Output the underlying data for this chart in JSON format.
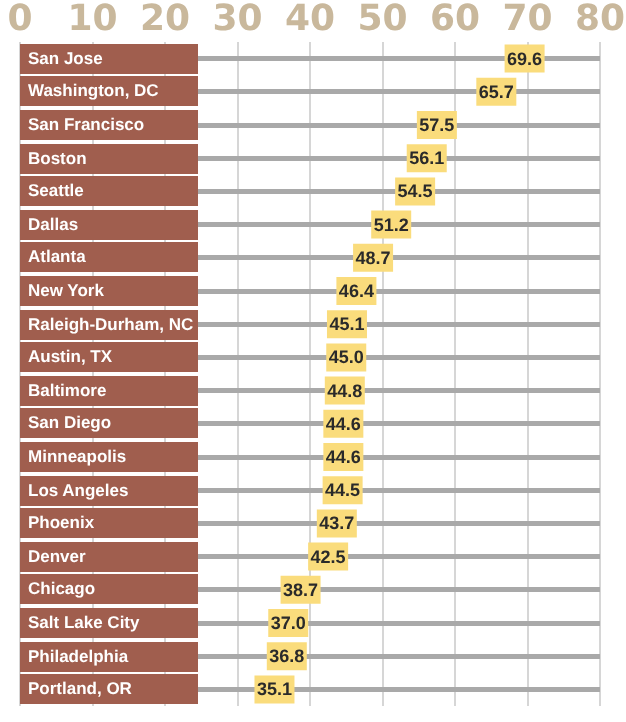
{
  "chart_data": {
    "type": "scatter",
    "orientation": "horizontal",
    "categories": [
      "San Jose",
      "Washington, DC",
      "San Francisco",
      "Boston",
      "Seattle",
      "Dallas",
      "Atlanta",
      "New York",
      "Raleigh-Durham, NC",
      "Austin, TX",
      "Baltimore",
      "San Diego",
      "Minneapolis",
      "Los Angeles",
      "Phoenix",
      "Denver",
      "Chicago",
      "Salt Lake City",
      "Philadelphia",
      "Portland, OR"
    ],
    "values": [
      69.6,
      65.7,
      57.5,
      56.1,
      54.5,
      51.2,
      48.7,
      46.4,
      45.1,
      45.0,
      44.8,
      44.6,
      44.6,
      44.5,
      43.7,
      42.5,
      38.7,
      37.0,
      36.8,
      35.1
    ],
    "value_labels": [
      "69.6",
      "65.7",
      "57.5",
      "56.1",
      "54.5",
      "51.2",
      "48.7",
      "46.4",
      "45.1",
      "45.0",
      "44.8",
      "44.6",
      "44.6",
      "44.5",
      "43.7",
      "42.5",
      "38.7",
      "37.0",
      "36.8",
      "35.1"
    ],
    "color": "#fadc7c",
    "marker": "square",
    "grid": true,
    "xlim": [
      0,
      80
    ],
    "xticks": [
      0,
      10,
      20,
      30,
      40,
      50,
      60,
      70,
      80
    ]
  }
}
